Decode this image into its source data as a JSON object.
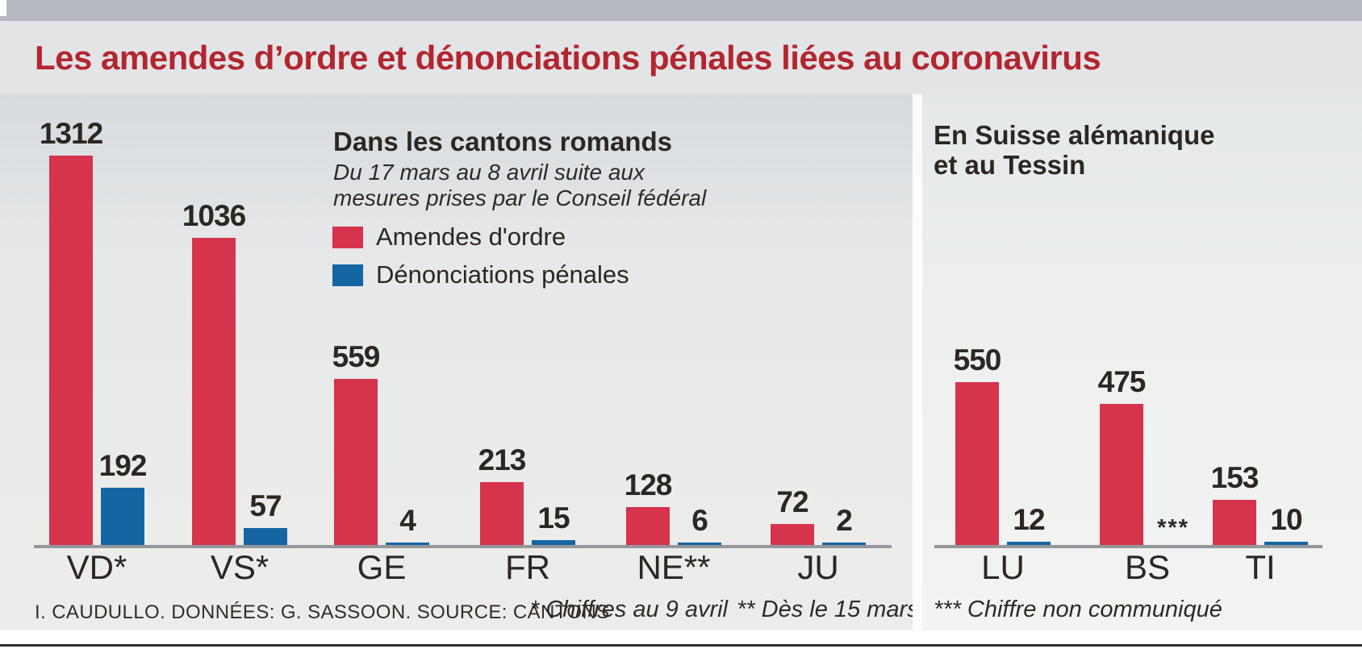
{
  "header": {
    "title": "Les amendes d’ordre et dénonciations pénales liées au coronavirus"
  },
  "colors": {
    "amendes": "#d5344c",
    "denonciations": "#1565a3",
    "title_red": "#b2262f",
    "axis": "#95989b",
    "text_dark": "#2b2723"
  },
  "left_panel": {
    "heading": "Dans les cantons romands",
    "subtitle_line1": "Du 17 mars au 8 avril suite aux",
    "subtitle_line2": "mesures prises par le Conseil fédéral",
    "legend": [
      {
        "label": "Amendes d'ordre",
        "color": "#d5344c"
      },
      {
        "label": "Dénonciations pénales",
        "color": "#1565a3"
      }
    ]
  },
  "right_panel": {
    "heading_line1": "En Suisse alémanique",
    "heading_line2": "et au Tessin"
  },
  "footer": {
    "credits": "I. CAUDULLO. DONNÉES: G. SASSOON. SOURCE: CANTONS",
    "note1": "* Chiffres au 9 avril",
    "note2": "** Dès le 15 mars",
    "note3": "*** Chiffre non communiqué"
  },
  "chart_data": [
    {
      "type": "bar",
      "title": "Dans les cantons romands",
      "subtitle": "Du 17 mars au 8 avril suite aux mesures prises par le Conseil fédéral",
      "categories": [
        "VD*",
        "VS*",
        "GE",
        "FR",
        "NE**",
        "JU"
      ],
      "series": [
        {
          "name": "Amendes d'ordre",
          "values": [
            1312,
            1036,
            559,
            213,
            128,
            72
          ]
        },
        {
          "name": "Dénonciations pénales",
          "values": [
            192,
            57,
            4,
            15,
            6,
            2
          ]
        }
      ],
      "value_labels": true,
      "legend_position": "top",
      "grid": false
    },
    {
      "type": "bar",
      "title": "En Suisse alémanique et au Tessin",
      "categories": [
        "LU",
        "BS",
        "TI"
      ],
      "series": [
        {
          "name": "Amendes d'ordre",
          "values": [
            550,
            475,
            153
          ]
        },
        {
          "name": "Dénonciations pénales",
          "values": [
            12,
            null,
            10
          ]
        }
      ],
      "missing_marker": "***",
      "missing_note": "*** Chiffre non communiqué",
      "value_labels": true,
      "grid": false
    }
  ]
}
